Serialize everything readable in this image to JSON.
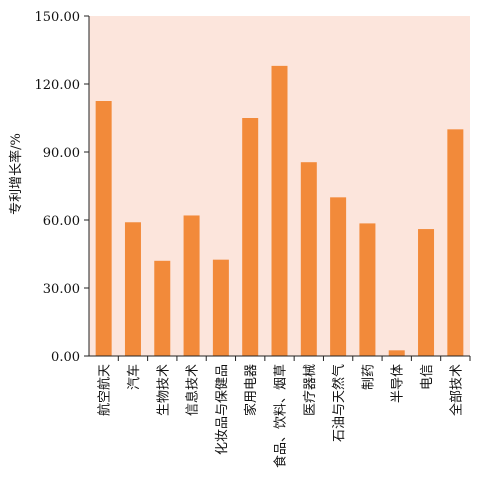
{
  "chart_data": {
    "type": "bar",
    "categories": [
      "航空航天",
      "汽车",
      "生物技术",
      "信息技术",
      "化妆品与保健品",
      "家用电器",
      "食品、饮料、烟草",
      "医疗器械",
      "石油与天然气",
      "制药",
      "半导体",
      "电信",
      "全部技术"
    ],
    "values": [
      112.5,
      59.0,
      42.0,
      62.0,
      42.5,
      105.0,
      128.0,
      85.5,
      70.0,
      58.5,
      2.5,
      56.0,
      100.0
    ],
    "ylabel": "专利增长率/%",
    "xlabel": "",
    "ylim": [
      0,
      150
    ],
    "yticks": [
      "0.00",
      "30.00",
      "60.00",
      "90.00",
      "120.00",
      "150.00"
    ],
    "grid": false,
    "colors": {
      "bar": "#F28A3A",
      "plot_background": "#FCE5DC"
    }
  }
}
